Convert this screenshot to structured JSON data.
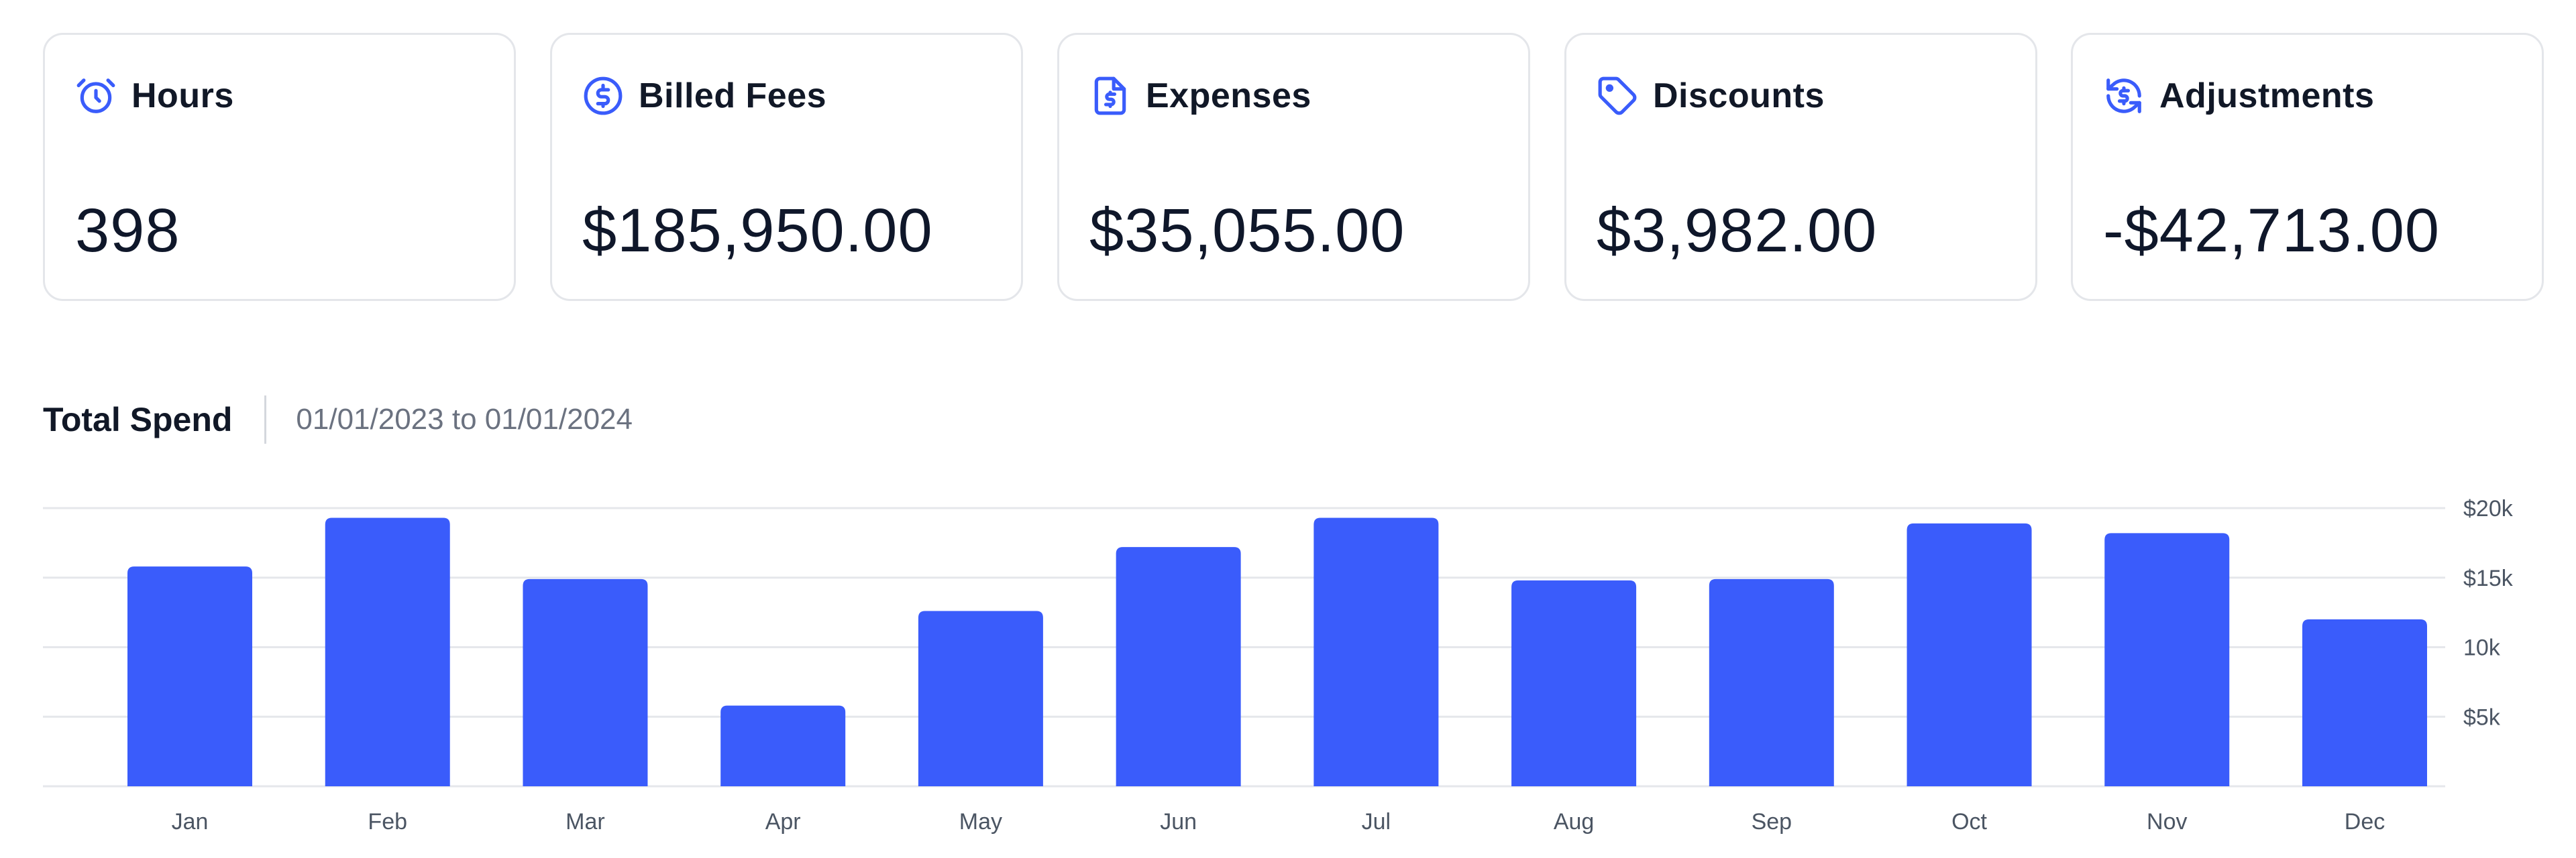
{
  "cards": [
    {
      "label": "Hours",
      "value": "398",
      "icon": "alarm-clock-icon"
    },
    {
      "label": "Billed Fees",
      "value": "$185,950.00",
      "icon": "dollar-coin-icon"
    },
    {
      "label": "Expenses",
      "value": "$35,055.00",
      "icon": "invoice-document-icon"
    },
    {
      "label": "Discounts",
      "value": "$3,982.00",
      "icon": "price-tag-icon"
    },
    {
      "label": "Adjustments",
      "value": "-$42,713.00",
      "icon": "dollar-refresh-icon"
    }
  ],
  "spend": {
    "title": "Total Spend",
    "range": "01/01/2023 to 01/01/2024"
  },
  "colors": {
    "accent": "#3a5cfb",
    "grid": "#e5e7eb",
    "card_border": "#e4e6ea"
  },
  "chart_data": {
    "type": "bar",
    "categories": [
      "Jan",
      "Feb",
      "Mar",
      "Apr",
      "May",
      "Jun",
      "Jul",
      "Aug",
      "Sep",
      "Oct",
      "Nov",
      "Dec"
    ],
    "values": [
      15800,
      19300,
      14900,
      5800,
      12600,
      17200,
      19300,
      14800,
      14900,
      18900,
      18200,
      12000
    ],
    "ylim": [
      0,
      20000
    ],
    "yticks": [
      5000,
      10000,
      15000,
      20000
    ],
    "ytick_labels": [
      "$5k",
      "10k",
      "$15k",
      "$20k"
    ],
    "grid": true,
    "title": "",
    "xlabel": "",
    "ylabel": ""
  }
}
